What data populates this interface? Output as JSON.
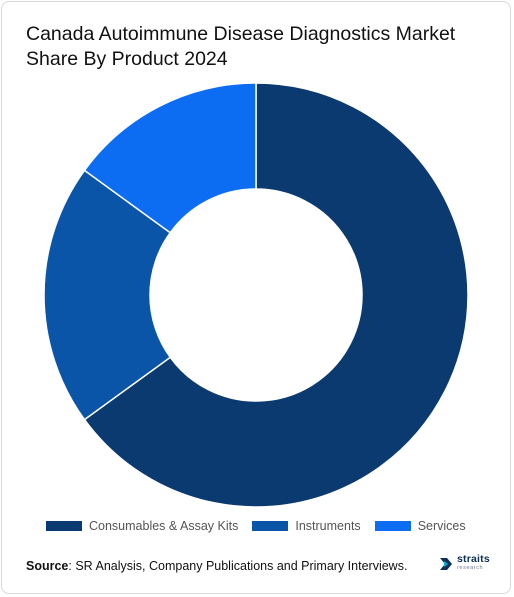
{
  "title": "Canada Autoimmune Disease Diagnostics Market Share By Product 2024",
  "chart_data": {
    "type": "pie",
    "variant": "donut",
    "title": "Canada Autoimmune Disease Diagnostics Market Share By Product 2024",
    "categories": [
      "Consumables & Assay Kits",
      "Instruments",
      "Services"
    ],
    "values": [
      65,
      20,
      15
    ],
    "colors": [
      "#0b3a70",
      "#0a55a8",
      "#0d6df2"
    ],
    "legend_position": "bottom"
  },
  "legend": [
    {
      "label": "Consumables & Assay Kits",
      "color": "#0b3a70"
    },
    {
      "label": "Instruments",
      "color": "#0a55a8"
    },
    {
      "label": "Services",
      "color": "#0d6df2"
    }
  ],
  "source": {
    "prefix": "Source",
    "text": ": SR Analysis, Company Publications and Primary Interviews."
  },
  "logo": {
    "name": "straits",
    "sub": "research"
  }
}
